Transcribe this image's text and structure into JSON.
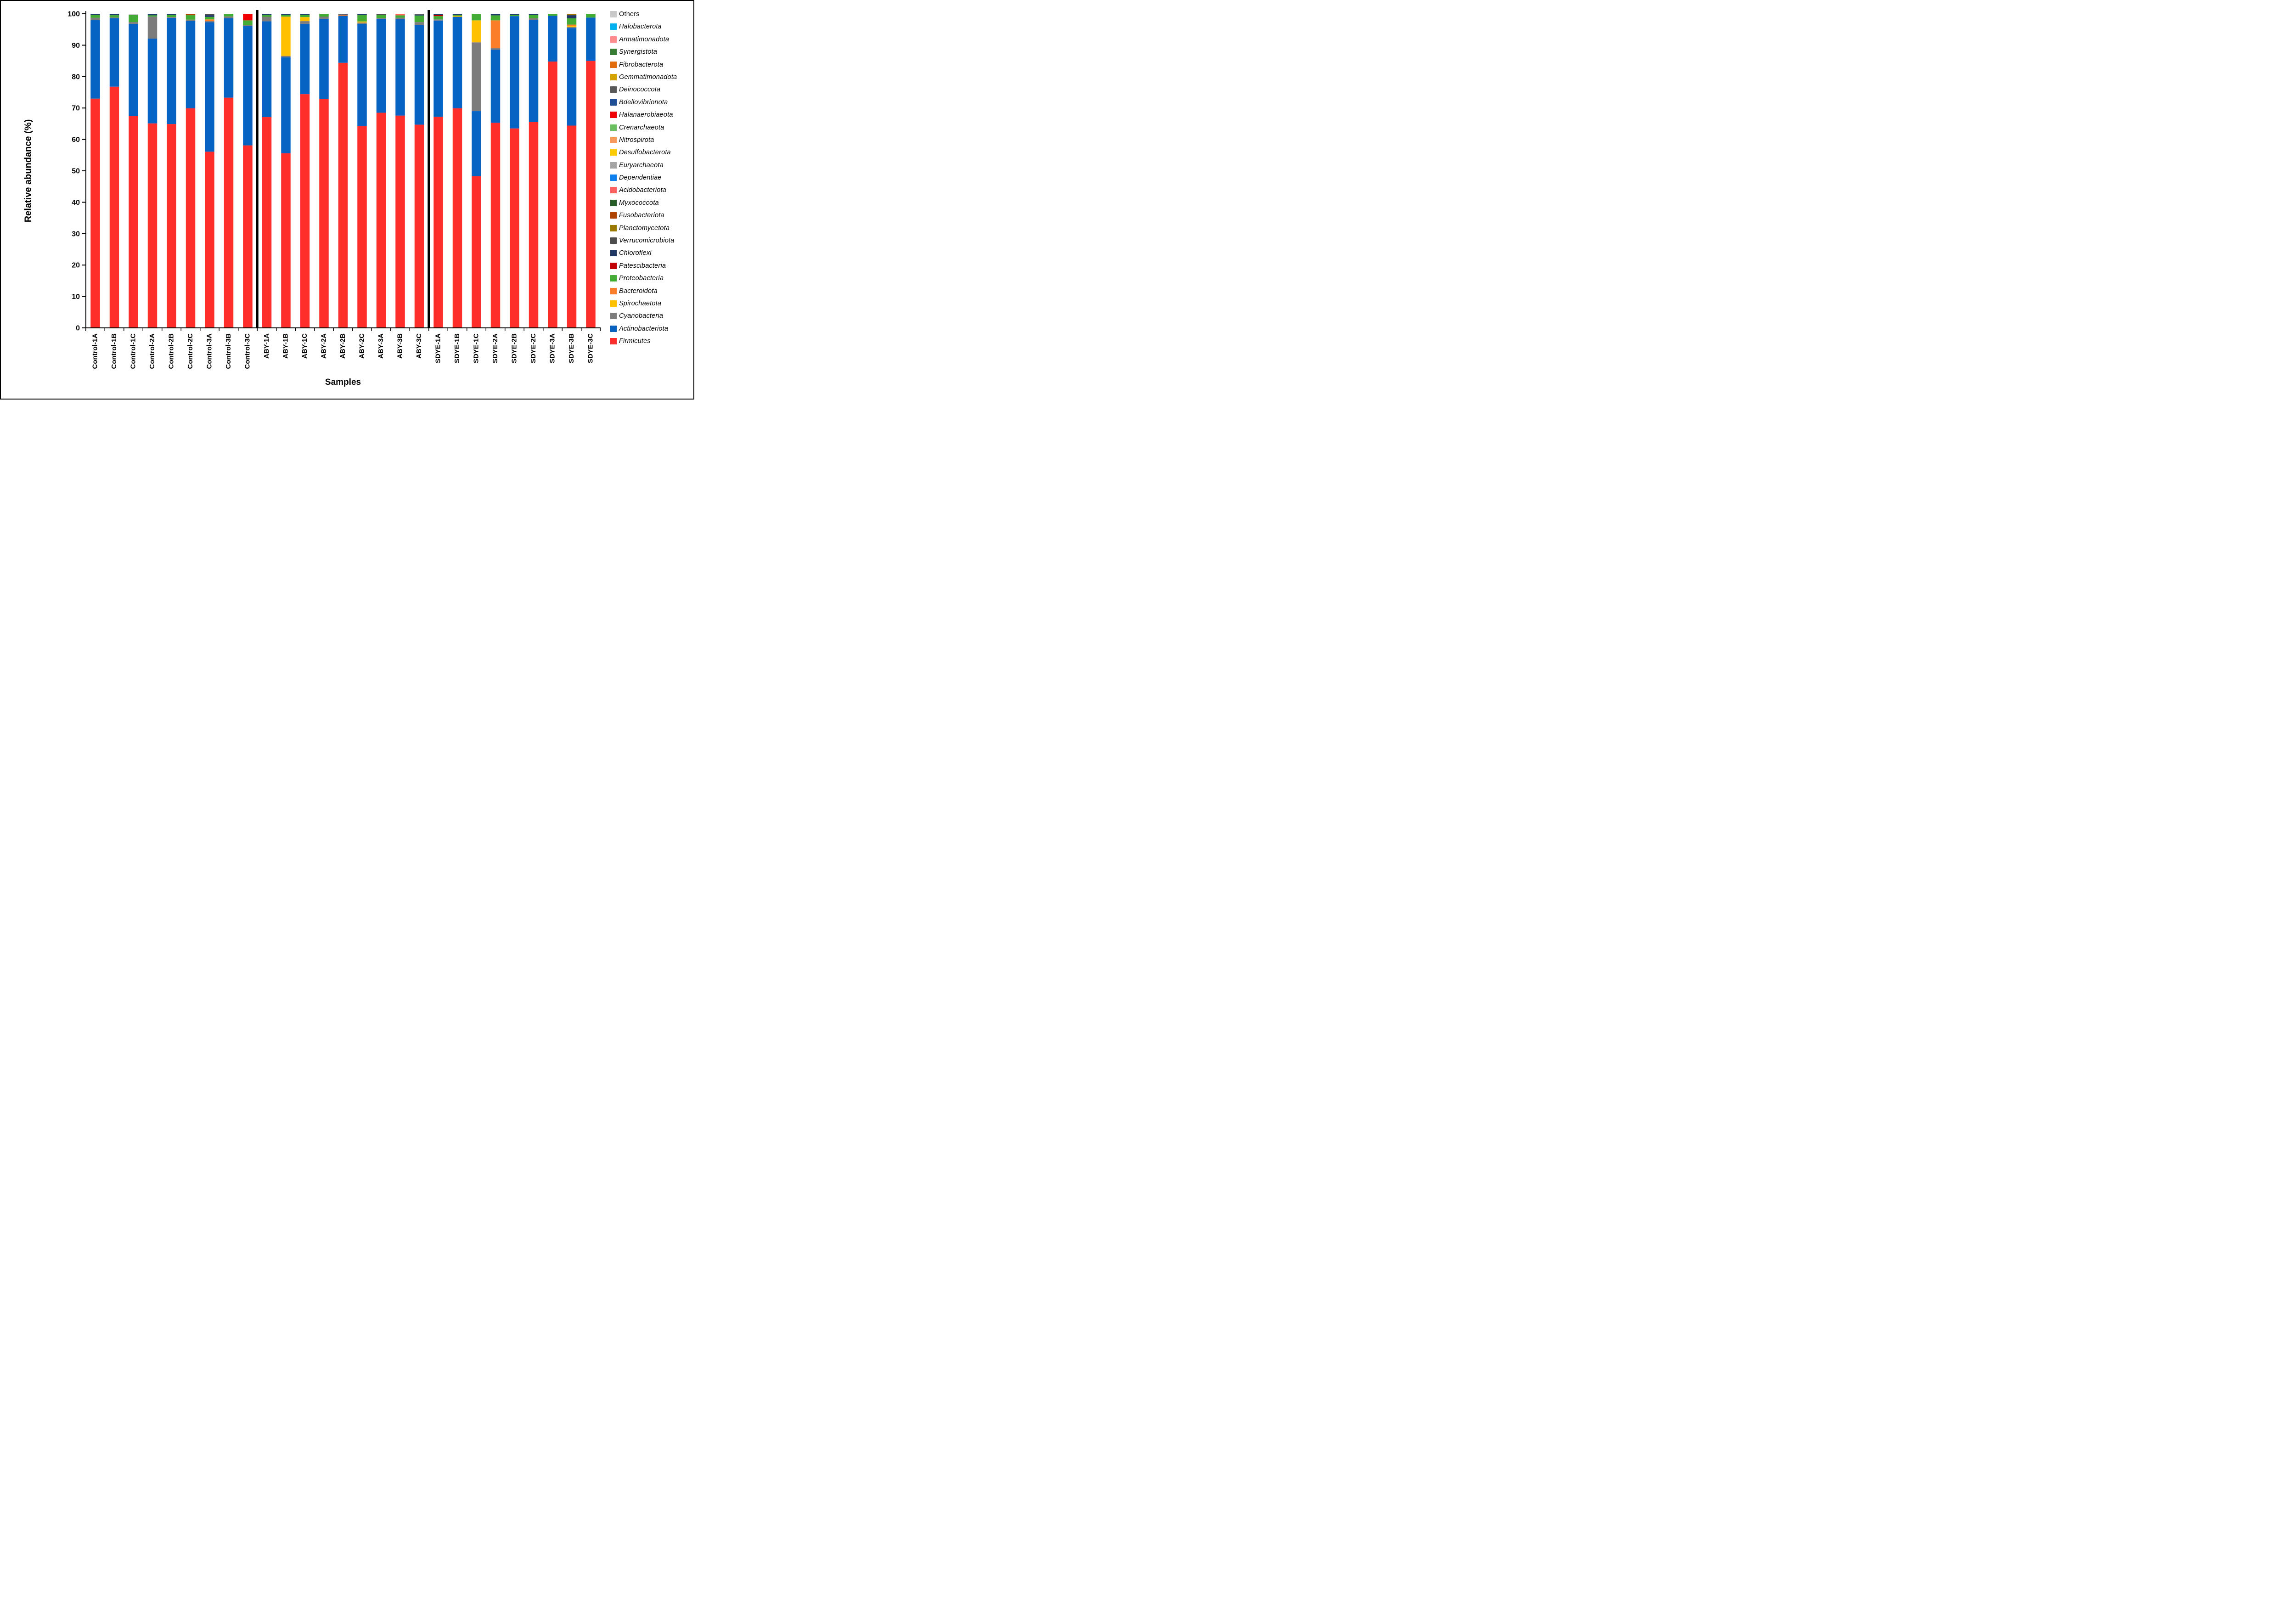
{
  "figure": {
    "y_axis": {
      "title": "Relative abundance (%)"
    },
    "x_axis": {
      "title": "Samples"
    }
  },
  "chart_data": {
    "type": "bar",
    "stacked": true,
    "ylabel": "Relative abundance (%)",
    "xlabel": "Samples",
    "ylim": [
      0,
      100
    ],
    "yticks": [
      0,
      10,
      20,
      30,
      40,
      50,
      60,
      70,
      80,
      90,
      100
    ],
    "grid": false,
    "legend_position": "right",
    "categories": [
      "Control-1A",
      "Control-1B",
      "Control-1C",
      "Control-2A",
      "Control-2B",
      "Control-2C",
      "Control-3A",
      "Control-3B",
      "Control-3C",
      "ABY-1A",
      "ABY-1B",
      "ABY-1C",
      "ABY-2A",
      "ABY-2B",
      "ABY-2C",
      "ABY-3A",
      "ABY-3B",
      "ABY-3C",
      "SDYE-1A",
      "SDYE-1B",
      "SDYE-1C",
      "SDYE-2A",
      "SDYE-2B",
      "SDYE-2C",
      "SDYE-3A",
      "SDYE-3B",
      "SDYE-3C"
    ],
    "group_separators_after_index": [
      8,
      17
    ],
    "series": [
      {
        "name": "Firmicutes",
        "color": "#FE2E2B",
        "values": [
          73.0,
          76.8,
          67.4,
          65.1,
          64.9,
          69.9,
          56.1,
          73.3,
          58.1,
          67.1,
          55.6,
          74.4,
          72.9,
          84.4,
          64.2,
          68.5,
          67.6,
          64.7,
          67.2,
          69.9,
          48.3,
          65.3,
          63.5,
          65.5,
          84.8,
          64.4,
          85.0
        ]
      },
      {
        "name": "Actinobacteriota",
        "color": "#0663C4",
        "values": [
          24.95,
          21.8,
          29.4,
          27.0,
          33.8,
          27.8,
          41.2,
          25.3,
          37.95,
          30.5,
          30.55,
          22.4,
          25.5,
          15.0,
          32.6,
          29.9,
          30.7,
          31.7,
          30.65,
          29.15,
          20.7,
          23.3,
          35.75,
          32.6,
          14.55,
          31.05,
          13.8
        ]
      },
      {
        "name": "Cyanobacteria",
        "color": "#7C7C7C",
        "values": [
          0.8,
          0.25,
          0.55,
          7.0,
          0.25,
          0.45,
          0.4,
          0.55,
          0.35,
          1.45,
          0.45,
          0.85,
          0.65,
          0,
          0.4,
          0.25,
          0.45,
          0.95,
          0.35,
          0,
          21.9,
          0.5,
          0,
          0.5,
          0,
          0.35,
          0
        ]
      },
      {
        "name": "Spirochaetota",
        "color": "#FFC000",
        "values": [
          0,
          0,
          0,
          0,
          0,
          0,
          0,
          0,
          0,
          0,
          12.5,
          1.3,
          0,
          0,
          0.35,
          0,
          0,
          0,
          0,
          0.3,
          7.0,
          0,
          0,
          0,
          0,
          0.35,
          0
        ]
      },
      {
        "name": "Bacteroidota",
        "color": "#FB7D28",
        "values": [
          0,
          0,
          0,
          0,
          0,
          0,
          0.5,
          0,
          0,
          0,
          0,
          0,
          0,
          0.35,
          0,
          0,
          0,
          0,
          0,
          0,
          0,
          8.8,
          0,
          0,
          0,
          0.4,
          0
        ]
      },
      {
        "name": "Proteobacteria",
        "color": "#43AC34",
        "values": [
          0.85,
          0.7,
          2.25,
          0.4,
          0.7,
          1.4,
          0.8,
          0.85,
          1.5,
          0.6,
          0.55,
          0.7,
          0.95,
          0,
          2.05,
          0.95,
          0.75,
          2.1,
          1.05,
          0.3,
          2.1,
          1.6,
          0.4,
          1.0,
          0.65,
          2.0,
          1.2
        ]
      },
      {
        "name": "Patescibacteria",
        "color": "#C00000",
        "values": [
          0,
          0,
          0,
          0,
          0,
          0,
          0,
          0,
          0,
          0,
          0,
          0,
          0,
          0,
          0,
          0,
          0,
          0,
          0.35,
          0,
          0,
          0,
          0,
          0,
          0,
          0,
          0
        ]
      },
      {
        "name": "Chloroflexi",
        "color": "#1F3864",
        "values": [
          0.4,
          0.45,
          0,
          0.5,
          0.35,
          0,
          0.55,
          0,
          0,
          0.35,
          0.35,
          0.35,
          0,
          0.25,
          0.4,
          0,
          0,
          0.3,
          0.4,
          0.35,
          0,
          0.5,
          0.35,
          0.4,
          0,
          1.0,
          0
        ]
      },
      {
        "name": "Verrucomicrobiota",
        "color": "#4D4D4D",
        "values": [
          0,
          0,
          0,
          0,
          0,
          0,
          0.45,
          0,
          0,
          0,
          0,
          0,
          0,
          0,
          0,
          0.4,
          0,
          0.25,
          0,
          0,
          0,
          0,
          0,
          0,
          0,
          0,
          0
        ]
      },
      {
        "name": "Planctomycetota",
        "color": "#9C7A00",
        "values": [
          0,
          0,
          0,
          0,
          0,
          0,
          0,
          0,
          0,
          0,
          0,
          0,
          0,
          0,
          0,
          0,
          0,
          0,
          0,
          0,
          0,
          0,
          0,
          0,
          0,
          0.45,
          0
        ]
      },
      {
        "name": "Fusobacteriota",
        "color": "#B04300",
        "values": [
          0,
          0,
          0,
          0,
          0,
          0.45,
          0,
          0,
          0,
          0,
          0,
          0,
          0,
          0,
          0,
          0,
          0,
          0,
          0,
          0,
          0,
          0,
          0,
          0,
          0,
          0,
          0
        ]
      },
      {
        "name": "Acidobacteriota",
        "color": "#FF6161",
        "values": [
          0,
          0,
          0,
          0,
          0,
          0,
          0,
          0,
          0,
          0,
          0,
          0,
          0,
          0,
          0,
          0,
          0.5,
          0,
          0,
          0,
          0,
          0,
          0,
          0,
          0,
          0,
          0
        ]
      },
      {
        "name": "Halanaerobiaeota",
        "color": "#F00000",
        "values": [
          0,
          0,
          0,
          0,
          0,
          0,
          0,
          0,
          2.1,
          0,
          0,
          0,
          0,
          0,
          0,
          0,
          0,
          0,
          0,
          0,
          0,
          0,
          0,
          0,
          0,
          0,
          0
        ]
      },
      {
        "name": "Others",
        "color": "#C9C9C9",
        "values": [
          0,
          0,
          0.4,
          0,
          0,
          0,
          0,
          0,
          0,
          0,
          0,
          0,
          0,
          0,
          0,
          0,
          0,
          0,
          0,
          0,
          0,
          0,
          0,
          0,
          0,
          0,
          0
        ]
      }
    ],
    "legend": [
      {
        "label": "Others",
        "color": "#C9C9C9",
        "italic": false
      },
      {
        "label": "Halobacterota",
        "color": "#00B0F0",
        "italic": true
      },
      {
        "label": "Armatimonadota",
        "color": "#FF8B8B",
        "italic": true
      },
      {
        "label": "Synergistota",
        "color": "#377D33",
        "italic": true
      },
      {
        "label": "Fibrobacterota",
        "color": "#E36C09",
        "italic": true
      },
      {
        "label": "Gemmatimonadota",
        "color": "#D5A300",
        "italic": true
      },
      {
        "label": "Deinococcota",
        "color": "#595959",
        "italic": true
      },
      {
        "label": "Bdellovibrionota",
        "color": "#1F4E99",
        "italic": true
      },
      {
        "label": "Halanaerobiaeota",
        "color": "#F00000",
        "italic": true
      },
      {
        "label": "Crenarchaeota",
        "color": "#6ABF5E",
        "italic": true
      },
      {
        "label": "Nitrospirota",
        "color": "#F9995D",
        "italic": true
      },
      {
        "label": "Desulfobacterota",
        "color": "#FFCB05",
        "italic": true
      },
      {
        "label": "Euryarchaeota",
        "color": "#A6A6A6",
        "italic": true
      },
      {
        "label": "Dependentiae",
        "color": "#0D80F2",
        "italic": true
      },
      {
        "label": "Acidobacteriota",
        "color": "#FF6161",
        "italic": true
      },
      {
        "label": "Myxococcota",
        "color": "#265D26",
        "italic": true
      },
      {
        "label": "Fusobacteriota",
        "color": "#B04300",
        "italic": true
      },
      {
        "label": "Planctomycetota",
        "color": "#9C7A00",
        "italic": true
      },
      {
        "label": "Verrucomicrobiota",
        "color": "#4D4D4D",
        "italic": true
      },
      {
        "label": "Chloroflexi",
        "color": "#1F3864",
        "italic": true
      },
      {
        "label": "Patescibacteria",
        "color": "#C00000",
        "italic": true
      },
      {
        "label": "Proteobacteria",
        "color": "#43AC34",
        "italic": true
      },
      {
        "label": "Bacteroidota",
        "color": "#FB7D28",
        "italic": true
      },
      {
        "label": "Spirochaetota",
        "color": "#FFC000",
        "italic": true
      },
      {
        "label": "Cyanobacteria",
        "color": "#7C7C7C",
        "italic": true
      },
      {
        "label": "Actinobacteriota",
        "color": "#0663C4",
        "italic": true
      },
      {
        "label": "Firmicutes",
        "color": "#FE2E2B",
        "italic": true
      }
    ]
  }
}
